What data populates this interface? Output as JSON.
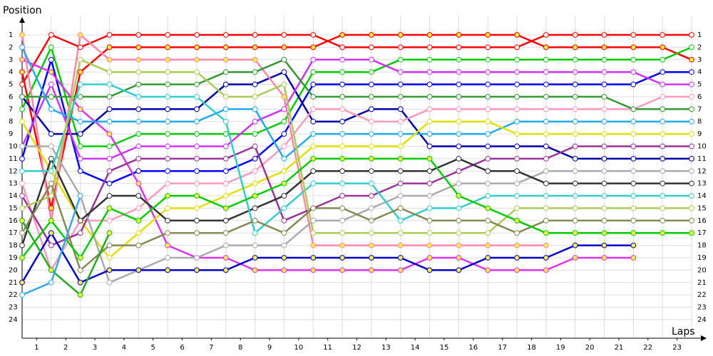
{
  "chart_data": {
    "type": "line",
    "y_label": "Position",
    "x_label": "Laps",
    "x": [
      0,
      1,
      2,
      3,
      4,
      5,
      6,
      7,
      8,
      9,
      10,
      11,
      12,
      13,
      14,
      15,
      16,
      17,
      18,
      19,
      20,
      21,
      22,
      23
    ],
    "xlim": [
      0,
      23
    ],
    "xticks": [
      {
        "value": 0.5,
        "label": "1"
      },
      {
        "value": 1.5,
        "label": "2"
      },
      {
        "value": 2.5,
        "label": "3"
      },
      {
        "value": 3.5,
        "label": "4"
      },
      {
        "value": 4.5,
        "label": "5"
      },
      {
        "value": 5.5,
        "label": "6"
      },
      {
        "value": 6.5,
        "label": "7"
      },
      {
        "value": 7.5,
        "label": "8"
      },
      {
        "value": 8.5,
        "label": "9"
      },
      {
        "value": 9.5,
        "label": "10"
      },
      {
        "value": 10.5,
        "label": "11"
      },
      {
        "value": 11.5,
        "label": "12"
      },
      {
        "value": 12.5,
        "label": "13"
      },
      {
        "value": 13.5,
        "label": "14"
      },
      {
        "value": 14.5,
        "label": "15"
      },
      {
        "value": 15.5,
        "label": "16"
      },
      {
        "value": 16.5,
        "label": "17"
      },
      {
        "value": 17.5,
        "label": "18"
      },
      {
        "value": 18.5,
        "label": "19"
      },
      {
        "value": 19.5,
        "label": "20"
      },
      {
        "value": 20.5,
        "label": "21"
      },
      {
        "value": 21.5,
        "label": "22"
      },
      {
        "value": 22.5,
        "label": "23"
      }
    ],
    "ylim": [
      25.5,
      0
    ],
    "yticks": [
      1,
      2,
      3,
      4,
      5,
      6,
      7,
      8,
      9,
      10,
      11,
      12,
      13,
      14,
      15,
      16,
      17,
      18,
      19,
      20,
      21,
      22,
      23,
      24
    ],
    "grid": true,
    "series": [
      {
        "color": "#ff0000",
        "marker_fill": "#ffffff",
        "values": [
          5,
          1,
          2,
          1,
          1,
          1,
          1,
          1,
          1,
          1,
          1,
          2,
          2,
          2,
          2,
          2,
          2,
          2,
          1,
          1,
          1,
          1,
          1,
          1
        ]
      },
      {
        "color": "#ff0000",
        "marker_fill": "#ffee44",
        "values": [
          4,
          15,
          4,
          2,
          2,
          2,
          2,
          2,
          2,
          2,
          2,
          1,
          1,
          1,
          1,
          1,
          1,
          1,
          2,
          2,
          2,
          2,
          2,
          3
        ]
      },
      {
        "color": "#00cc00",
        "marker_fill": "#ffffff",
        "values": [
          7,
          2,
          10,
          10,
          9,
          9,
          9,
          9,
          9,
          8,
          4,
          4,
          4,
          3,
          3,
          3,
          3,
          3,
          3,
          3,
          3,
          3,
          3,
          2
        ]
      },
      {
        "color": "#0000ff",
        "marker_fill": "#ffffff",
        "values": [
          11,
          3,
          12,
          13,
          12,
          12,
          12,
          12,
          11,
          9,
          5,
          5,
          5,
          5,
          5,
          5,
          5,
          5,
          5,
          5,
          5,
          5,
          4,
          4
        ]
      },
      {
        "color": "#0000aa",
        "marker_fill": "#ffffff",
        "values": [
          6,
          9,
          9,
          7,
          7,
          7,
          7,
          5,
          5,
          4,
          8,
          8,
          7,
          7,
          10,
          10,
          10,
          10,
          10,
          11,
          11,
          11,
          11,
          11
        ]
      },
      {
        "color": "#cc33ff",
        "marker_fill": "#ffffff",
        "values": [
          10,
          5,
          11,
          11,
          10,
          10,
          10,
          10,
          8,
          7,
          3,
          3,
          3,
          4,
          4,
          4,
          4,
          4,
          4,
          4,
          4,
          4,
          5,
          5
        ]
      },
      {
        "color": "#dd33ee",
        "marker_fill": "#ffee44",
        "values": [
          3,
          4,
          7,
          9,
          13,
          18,
          19,
          19,
          20,
          20,
          20,
          20,
          20,
          20,
          19,
          19,
          20,
          20,
          20,
          19,
          19,
          19,
          null,
          null
        ]
      },
      {
        "color": "#ff99bb",
        "marker_fill": "#ffffff",
        "values": [
          13,
          20,
          16,
          16,
          15,
          13,
          13,
          13,
          12,
          10,
          7,
          7,
          8,
          8,
          7,
          7,
          7,
          7,
          7,
          7,
          7,
          7,
          6,
          6
        ]
      },
      {
        "color": "#ff88aa",
        "marker_fill": "#ffee44",
        "values": [
          1,
          16,
          1,
          3,
          3,
          3,
          3,
          3,
          3,
          6,
          18,
          18,
          18,
          18,
          18,
          18,
          18,
          18,
          18,
          null,
          null,
          null,
          null,
          null
        ]
      },
      {
        "color": "#339933",
        "marker_fill": "#ffffff",
        "values": [
          6,
          6,
          6,
          6,
          5,
          5,
          5,
          4,
          4,
          3,
          6,
          6,
          6,
          6,
          6,
          6,
          6,
          6,
          6,
          6,
          6,
          7,
          7,
          7
        ]
      },
      {
        "color": "#22aaee",
        "marker_fill": "#ffffff",
        "values": [
          2,
          7,
          8,
          8,
          8,
          8,
          8,
          7,
          7,
          11,
          9,
          9,
          9,
          9,
          9,
          9,
          9,
          8,
          8,
          8,
          8,
          8,
          8,
          8
        ]
      },
      {
        "color": "#e0e000",
        "marker_fill": "#ffffff",
        "values": [
          8,
          12,
          16,
          19,
          17,
          15,
          15,
          14,
          13,
          12,
          10,
          10,
          10,
          10,
          8,
          8,
          8,
          9,
          9,
          9,
          9,
          9,
          9,
          9
        ]
      },
      {
        "color": "#993399",
        "marker_fill": "#ffffff",
        "values": [
          14,
          18,
          17,
          12,
          11,
          11,
          11,
          11,
          10,
          16,
          15,
          14,
          14,
          13,
          13,
          12,
          11,
          11,
          11,
          10,
          10,
          10,
          10,
          10
        ]
      },
      {
        "color": "#aaaaaa",
        "marker_fill": "#ffffff",
        "values": [
          10,
          10,
          14,
          21,
          20,
          19,
          19,
          18,
          18,
          18,
          16,
          16,
          15,
          14,
          14,
          13,
          13,
          13,
          12,
          12,
          12,
          12,
          12,
          12
        ]
      },
      {
        "color": "#333333",
        "marker_fill": "#ffffff",
        "values": [
          18,
          11,
          16,
          14,
          14,
          16,
          16,
          16,
          15,
          14,
          12,
          12,
          12,
          12,
          12,
          11,
          12,
          12,
          13,
          13,
          13,
          13,
          13,
          13
        ]
      },
      {
        "color": "#33cccc",
        "marker_fill": "#ffffff",
        "values": [
          12,
          12,
          5,
          5,
          6,
          6,
          6,
          8,
          17,
          15,
          13,
          13,
          13,
          16,
          15,
          15,
          14,
          14,
          14,
          14,
          14,
          14,
          14,
          14
        ]
      },
      {
        "color": "#aacc55",
        "marker_fill": "#ffffff",
        "values": [
          15,
          14,
          3,
          4,
          4,
          4,
          4,
          6,
          6,
          5,
          17,
          17,
          17,
          17,
          17,
          17,
          17,
          15,
          15,
          15,
          15,
          15,
          15,
          15
        ]
      },
      {
        "color": "#888855",
        "marker_fill": "#ffffff",
        "values": [
          17,
          13,
          20,
          18,
          18,
          17,
          17,
          17,
          16,
          17,
          15,
          15,
          16,
          15,
          16,
          16,
          16,
          17,
          16,
          16,
          16,
          16,
          16,
          16
        ]
      },
      {
        "color": "#00cc00",
        "marker_fill": "#ffee44",
        "values": [
          19,
          16,
          19,
          15,
          16,
          14,
          14,
          15,
          14,
          13,
          11,
          11,
          11,
          11,
          11,
          14,
          15,
          16,
          17,
          17,
          17,
          17,
          17,
          17
        ]
      },
      {
        "color": "#0000cc",
        "marker_fill": "#ffee44",
        "values": [
          21,
          17,
          21,
          20,
          20,
          20,
          20,
          20,
          19,
          19,
          19,
          19,
          19,
          19,
          20,
          20,
          19,
          19,
          19,
          18,
          18,
          18,
          null,
          null
        ]
      },
      {
        "color": "#22aa22",
        "marker_fill": "#ffee44",
        "values": [
          16,
          20,
          22,
          17,
          null,
          null,
          null,
          null,
          null,
          null,
          null,
          null,
          null,
          null,
          null,
          null,
          null,
          null,
          null,
          null,
          null,
          null,
          null,
          null
        ]
      },
      {
        "color": "#33aaee",
        "marker_fill": "#ffffff",
        "values": [
          22,
          21,
          14,
          null,
          null,
          null,
          null,
          null,
          null,
          null,
          null,
          null,
          null,
          null,
          null,
          null,
          null,
          null,
          null,
          null,
          null,
          null,
          null,
          null
        ]
      }
    ]
  }
}
